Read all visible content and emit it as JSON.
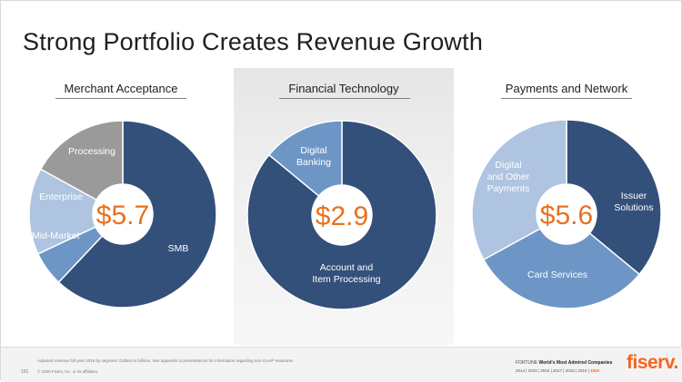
{
  "title": "Strong Portfolio Creates Revenue Growth",
  "colors": {
    "navy": "#33507a",
    "mid_blue": "#6d96c6",
    "light_blue": "#aec4e0",
    "gray": "#9a9a9a",
    "center_value": "#e8711f",
    "brand": "#f26522"
  },
  "chart_data": [
    {
      "type": "pie",
      "donut": true,
      "title": "Merchant Acceptance",
      "center_label": "$5.7",
      "slices": [
        {
          "label": "SMB",
          "value": 0.62,
          "color": "#33507a"
        },
        {
          "label": "Mid-Market",
          "value": 0.06,
          "color": "#6d96c6"
        },
        {
          "label": "Enterprise",
          "value": 0.15,
          "color": "#aec4e0"
        },
        {
          "label": "Processing",
          "value": 0.17,
          "color": "#9a9a9a"
        }
      ]
    },
    {
      "type": "pie",
      "donut": true,
      "title": "Financial Technology",
      "center_label": "$2.9",
      "slices": [
        {
          "label": "Account and Item Processing",
          "value": 0.86,
          "color": "#33507a"
        },
        {
          "label": "Digital Banking",
          "value": 0.14,
          "color": "#6d96c6"
        }
      ]
    },
    {
      "type": "pie",
      "donut": true,
      "title": "Payments and Network",
      "center_label": "$5.6",
      "slices": [
        {
          "label": "Issuer Solutions",
          "value": 0.36,
          "color": "#33507a"
        },
        {
          "label": "Card Services",
          "value": 0.31,
          "color": "#6d96c6"
        },
        {
          "label": "Digital and Other Payments",
          "value": 0.33,
          "color": "#aec4e0"
        }
      ]
    }
  ],
  "footer": {
    "footnote": "Adjusted revenue full year 2019 by segment. Dollars in billions. See appendix to presentations for information regarding non-GAAP measures",
    "page_number": "161",
    "copyright": "© 2020 Fiserv, Inc. or its affiliates.",
    "fortune_prefix": "FORTUNE",
    "fortune_title": "World's Most Admired Companies",
    "years": "2014 | 2015 | 2016 | 2017 | 2018 | 2019 |",
    "year_last": "2020",
    "logo_text": "fiserv."
  }
}
